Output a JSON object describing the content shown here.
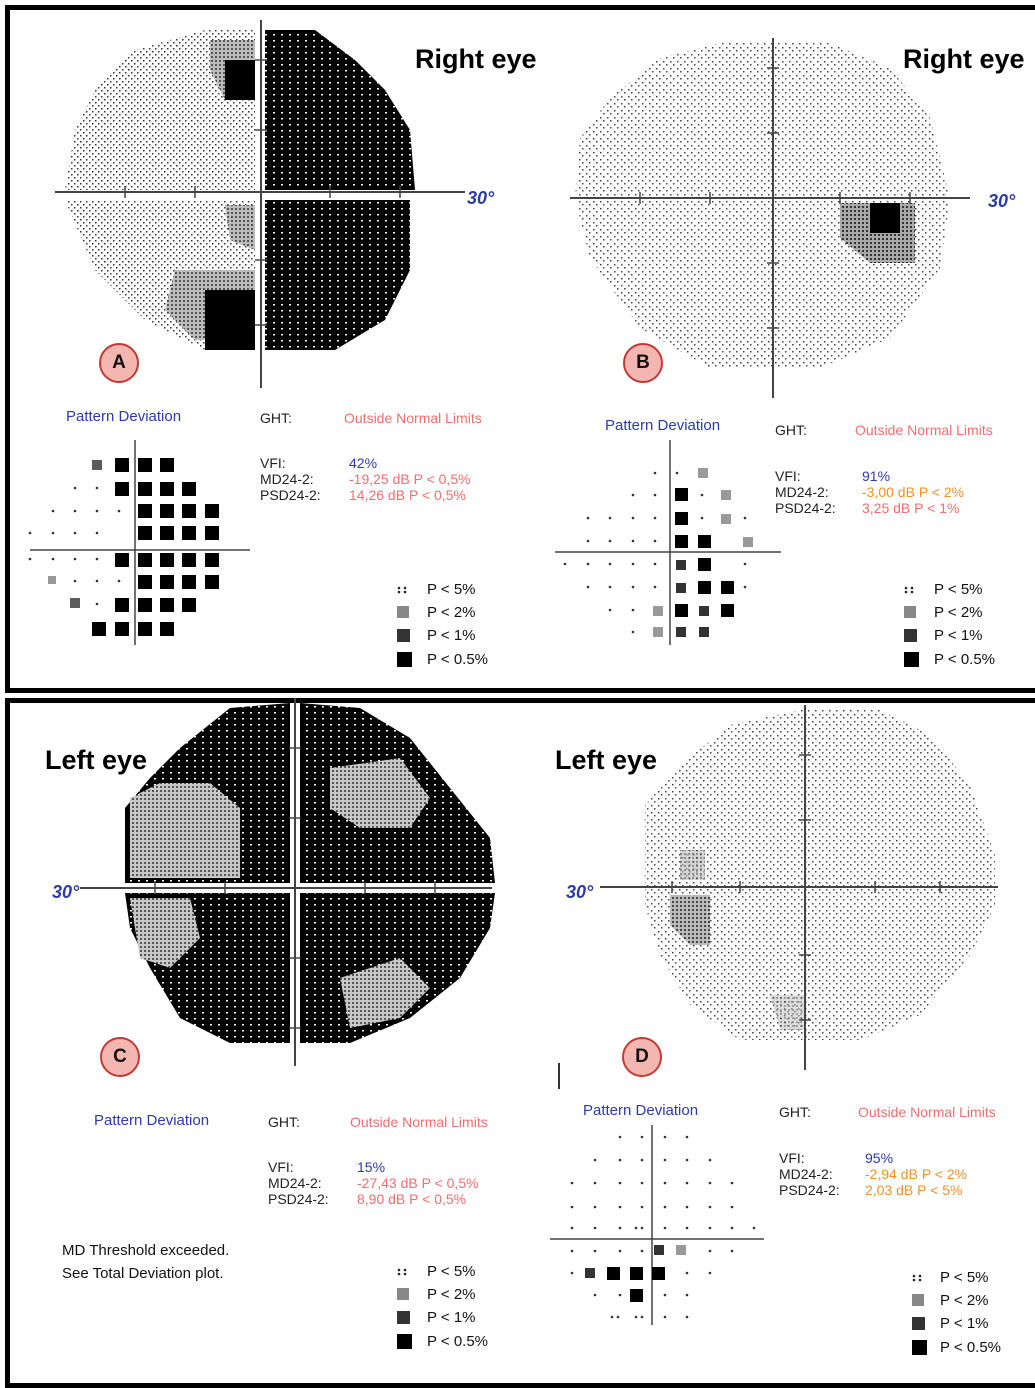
{
  "legend": [
    {
      "symbol": "dots",
      "label": "P < 5%"
    },
    {
      "symbol": "light",
      "label": "P < 2%"
    },
    {
      "symbol": "medium",
      "label": "P < 1%"
    },
    {
      "symbol": "solid",
      "label": "P < 0.5%"
    }
  ],
  "labels": {
    "pattern_deviation": "Pattern Deviation",
    "ght": "GHT:",
    "vfi": "VFI:",
    "md": "MD24-2:",
    "psd": "PSD24-2:",
    "degree": "30°",
    "md_note_line1": "MD Threshold exceeded.",
    "md_note_line2": "See Total Deviation plot."
  },
  "panels": [
    {
      "letter": "A",
      "eye": "Right eye",
      "ght": "Outside Normal Limits",
      "vfi": "42%",
      "md": "-19,25 dB P < 0,5%",
      "psd": "14,26 dB P < 0,5%",
      "md_color": "#f26d6d",
      "psd_color": "#f26d6d"
    },
    {
      "letter": "B",
      "eye": "Right eye",
      "ght": "Outside Normal Limits",
      "vfi": "91%",
      "md": "-3,00 dB P < 2%",
      "psd": "3,25 dB P < 1%",
      "md_color": "#f2902a",
      "psd_color": "#f26d6d"
    },
    {
      "letter": "C",
      "eye": "Left eye",
      "ght": "Outside Normal Limits",
      "vfi": "15%",
      "md": "-27,43 dB P < 0,5%",
      "psd": "8,90 dB P < 0,5%",
      "md_color": "#f26d6d",
      "psd_color": "#f26d6d"
    },
    {
      "letter": "D",
      "eye": "Left eye",
      "ght": "Outside Normal Limits",
      "vfi": "95%",
      "md": "-2,94 dB P < 2%",
      "psd": "2,03 dB P < 5%",
      "md_color": "#f2902a",
      "psd_color": "#f2902a"
    }
  ],
  "colors": {
    "accent_red": "#f26d6d",
    "accent_orange": "#f2902a",
    "accent_blue": "#2b3aa8",
    "badge_fill": "#f4b6b0",
    "badge_stroke": "#c23a35"
  }
}
